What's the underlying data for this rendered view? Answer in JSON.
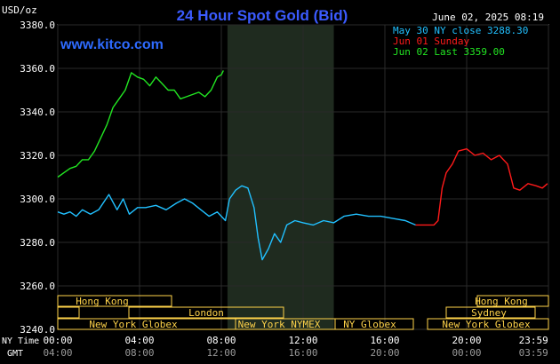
{
  "header": {
    "title": "24 Hour Spot Gold (Bid)",
    "unit_label": "USD/oz",
    "date": "June 02, 2025 08:19",
    "site": "www.kitco.com"
  },
  "legend": [
    {
      "text": "May 30 NY close 3288.30",
      "color": "#21c0ff"
    },
    {
      "text": "Jun 01 Sunday",
      "color": "#ff1a1a"
    },
    {
      "text": "Jun 02 Last 3359.00",
      "color": "#22e622"
    }
  ],
  "timezones": {
    "ny_label": "NY Time",
    "gmt_label": "GMT",
    "ny_ticks": [
      "00:00",
      "04:00",
      "08:00",
      "12:00",
      "16:00",
      "20:00",
      "23:59"
    ],
    "gmt_ticks": [
      "04:00",
      "08:00",
      "12:00",
      "16:00",
      "20:00",
      "00:00",
      "03:59"
    ]
  },
  "sessions": [
    {
      "label": "Hong Kong",
      "row": 0
    },
    {
      "label": "Hong Kong",
      "row": 0
    },
    {
      "label": "London",
      "row": 1
    },
    {
      "label": "Sydney",
      "row": 1
    },
    {
      "label": "New York Globex",
      "row": 2
    },
    {
      "label": "New York NYMEX",
      "row": 2
    },
    {
      "label": "NY Globex",
      "row": 2
    },
    {
      "label": "New York Globex",
      "row": 2
    }
  ],
  "chart_data": {
    "type": "line",
    "title": "24 Hour Spot Gold (Bid)",
    "ylabel": "USD/oz",
    "xlabel": "NY Time",
    "ylim": [
      3240,
      3380
    ],
    "y_ticks": [
      3240,
      3260,
      3280,
      3300,
      3320,
      3340,
      3360,
      3380
    ],
    "x_ticks": [
      "00:00",
      "04:00",
      "08:00",
      "12:00",
      "16:00",
      "20:00",
      "23:59"
    ],
    "xlim_hours": [
      0,
      24
    ],
    "shaded_region_hours": [
      8.3,
      13.5
    ],
    "grid": true,
    "series": [
      {
        "name": "May 30 NY close 3288.30",
        "color": "#21c0ff",
        "x": [
          0,
          0.3,
          0.6,
          0.9,
          1.2,
          1.6,
          2.0,
          2.5,
          2.9,
          3.2,
          3.5,
          3.9,
          4.3,
          4.8,
          5.3,
          5.8,
          6.2,
          6.6,
          7.0,
          7.4,
          7.8,
          8.0,
          8.2,
          8.4,
          8.7,
          9.0,
          9.3,
          9.6,
          9.8,
          10.0,
          10.3,
          10.6,
          10.9,
          11.2,
          11.6,
          12.0,
          12.5,
          13.0,
          13.5,
          14.0,
          14.6,
          15.2,
          15.8,
          16.4,
          17.0,
          17.5
        ],
        "y": [
          3294,
          3293,
          3294,
          3292,
          3295,
          3293,
          3295,
          3302,
          3295,
          3300,
          3293,
          3296,
          3296,
          3297,
          3295,
          3298,
          3300,
          3298,
          3295,
          3292,
          3294,
          3292,
          3290,
          3300,
          3304,
          3306,
          3305,
          3296,
          3282,
          3272,
          3277,
          3284,
          3280,
          3288,
          3290,
          3289,
          3288,
          3290,
          3289,
          3292,
          3293,
          3292,
          3292,
          3291,
          3290,
          3288
        ]
      },
      {
        "name": "Jun 01 Sunday",
        "color": "#ff1a1a",
        "x": [
          17.5,
          18.0,
          18.4,
          18.6,
          18.8,
          19.0,
          19.3,
          19.6,
          20.0,
          20.4,
          20.8,
          21.2,
          21.6,
          22.0,
          22.3,
          22.6,
          23.0,
          23.4,
          23.7,
          23.95
        ],
        "y": [
          3288,
          3288,
          3288,
          3290,
          3305,
          3312,
          3316,
          3322,
          3323,
          3320,
          3321,
          3318,
          3320,
          3316,
          3305,
          3304,
          3307,
          3306,
          3305,
          3307
        ]
      },
      {
        "name": "Jun 02 Last 3359.00",
        "color": "#22e622",
        "x": [
          0,
          0.3,
          0.6,
          0.9,
          1.2,
          1.5,
          1.8,
          2.1,
          2.4,
          2.7,
          3.0,
          3.3,
          3.6,
          3.9,
          4.2,
          4.5,
          4.8,
          5.1,
          5.4,
          5.7,
          6.0,
          6.3,
          6.6,
          6.9,
          7.2,
          7.5,
          7.8,
          8.0,
          8.1
        ],
        "y": [
          3310,
          3312,
          3314,
          3315,
          3318,
          3318,
          3322,
          3328,
          3334,
          3342,
          3346,
          3350,
          3358,
          3356,
          3355,
          3352,
          3356,
          3353,
          3350,
          3350,
          3346,
          3347,
          3348,
          3349,
          3347,
          3350,
          3356,
          3357,
          3359
        ]
      }
    ]
  }
}
